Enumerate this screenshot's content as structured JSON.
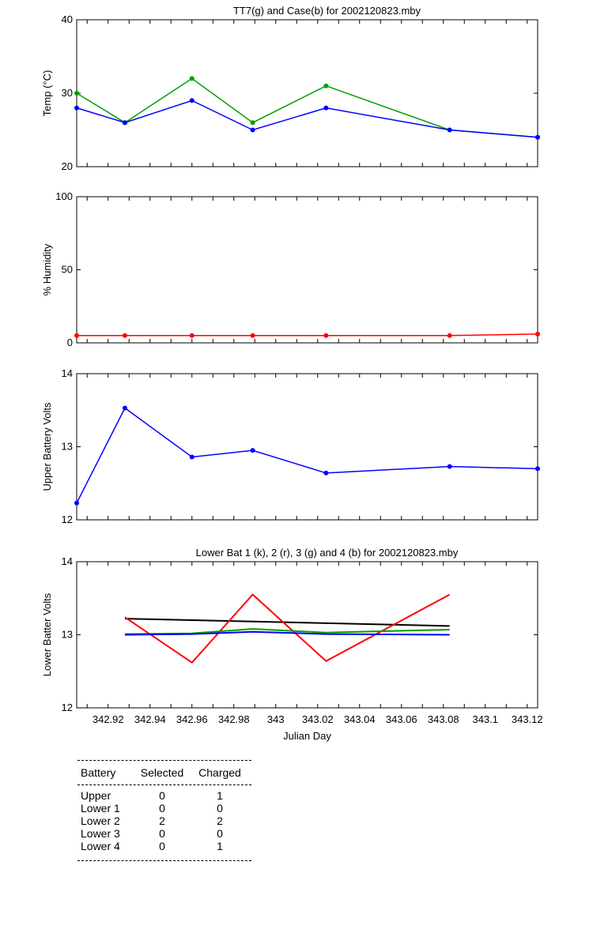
{
  "chart_data": [
    {
      "type": "line",
      "title": "TT7(g) and Case(b) for 2002120823.mby",
      "xlabel": "",
      "ylabel": "Temp  (°C)",
      "xlim": [
        342.905,
        343.125
      ],
      "ylim": [
        20,
        40
      ],
      "yticks": [
        20,
        30,
        40
      ],
      "series": [
        {
          "color": "#00a000",
          "marker": true,
          "x": [
            342.905,
            342.928,
            342.96,
            342.989,
            343.024,
            343.083,
            343.125
          ],
          "y": [
            30,
            26,
            32,
            26,
            31,
            25,
            24
          ]
        },
        {
          "color": "#0000ff",
          "marker": true,
          "x": [
            342.905,
            342.928,
            342.96,
            342.989,
            343.024,
            343.083,
            343.125
          ],
          "y": [
            28,
            26,
            29,
            25,
            28,
            25,
            24
          ]
        }
      ]
    },
    {
      "type": "line",
      "title": "",
      "xlabel": "",
      "ylabel": "% Humidity",
      "xlim": [
        342.905,
        343.125
      ],
      "ylim": [
        0,
        100
      ],
      "yticks": [
        0,
        50,
        100
      ],
      "series": [
        {
          "color": "#ff0000",
          "marker": true,
          "x": [
            342.905,
            342.928,
            342.96,
            342.989,
            343.024,
            343.083,
            343.125
          ],
          "y": [
            5,
            5,
            5,
            5,
            5,
            5,
            6
          ]
        }
      ]
    },
    {
      "type": "line",
      "title": "",
      "xlabel": "",
      "ylabel": "Upper Battery Volts",
      "xlim": [
        342.905,
        343.125
      ],
      "ylim": [
        12,
        14
      ],
      "yticks": [
        12,
        13,
        14
      ],
      "series": [
        {
          "color": "#0000ff",
          "marker": true,
          "x": [
            342.905,
            342.928,
            342.96,
            342.989,
            343.024,
            343.083,
            343.125
          ],
          "y": [
            12.23,
            13.53,
            12.86,
            12.95,
            12.64,
            12.73,
            12.7
          ]
        }
      ]
    },
    {
      "type": "line",
      "title": "Lower Bat 1 (k), 2 (r), 3 (g) and 4 (b) for 2002120823.mby",
      "xlabel": "Julian Day",
      "ylabel": "Lower Batter Volts",
      "xlim": [
        342.905,
        343.125
      ],
      "ylim": [
        12,
        14
      ],
      "yticks": [
        12,
        13,
        14
      ],
      "xticks": [
        "342.92",
        "342.94",
        "342.96",
        "342.98",
        "343",
        "343.02",
        "343.04",
        "343.06",
        "343.08",
        "343.1",
        "343.12"
      ],
      "series": [
        {
          "color": "#000000",
          "marker": false,
          "x": [
            342.928,
            343.083
          ],
          "y": [
            13.22,
            13.12
          ]
        },
        {
          "color": "#ff0000",
          "marker": false,
          "x": [
            342.928,
            342.96,
            342.989,
            343.024,
            343.083
          ],
          "y": [
            13.24,
            12.62,
            13.55,
            12.64,
            13.55
          ]
        },
        {
          "color": "#00a000",
          "marker": false,
          "x": [
            342.928,
            342.96,
            342.989,
            343.024,
            343.083
          ],
          "y": [
            13.01,
            13.02,
            13.08,
            13.03,
            13.07
          ]
        },
        {
          "color": "#0000ff",
          "marker": false,
          "x": [
            342.928,
            342.96,
            342.989,
            343.024,
            343.083
          ],
          "y": [
            13.0,
            13.01,
            13.04,
            13.01,
            13.0
          ]
        }
      ]
    }
  ],
  "battery_table": {
    "headers": [
      "Battery",
      "Selected",
      "Charged"
    ],
    "rows": [
      [
        "Upper",
        "0",
        "1"
      ],
      [
        "Lower 1",
        "0",
        "0"
      ],
      [
        "Lower 2",
        "2",
        "2"
      ],
      [
        "Lower 3",
        "0",
        "0"
      ],
      [
        "Lower 4",
        "0",
        "1"
      ]
    ]
  }
}
